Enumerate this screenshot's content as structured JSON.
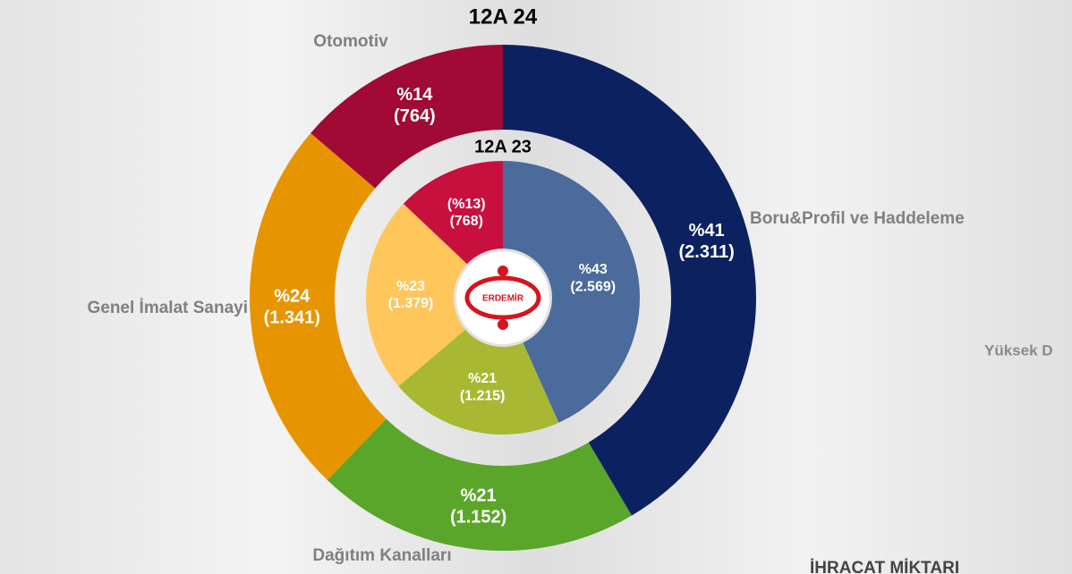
{
  "chart_data": {
    "type": "donut",
    "categories": [
      "Boru&Profil ve Haddeleme",
      "Dağıtım Kanalları",
      "Genel İmalat Sanayi",
      "Otomotiv"
    ],
    "rings": [
      {
        "name": "12A 24",
        "values": [
          2311,
          1152,
          1341,
          764
        ],
        "value_labels": [
          "(2.311)",
          "(1.152)",
          "(1.341)",
          "(764)"
        ],
        "percents": [
          41,
          21,
          24,
          14
        ],
        "percent_labels": [
          "%41",
          "%21",
          "%24",
          "%14"
        ],
        "colors": [
          "#0c2260",
          "#5aa62a",
          "#e69500",
          "#a00a35"
        ]
      },
      {
        "name": "12A 23",
        "values": [
          2569,
          1215,
          1379,
          768
        ],
        "value_labels": [
          "(2.569)",
          "(1.215)",
          "(1.379)",
          "(768)"
        ],
        "percents": [
          43,
          21,
          23,
          13
        ],
        "percent_labels": [
          "%43",
          "%21",
          "%23",
          "(%13)"
        ],
        "colors": [
          "#4a6b9b",
          "#a8b832",
          "#ffc65c",
          "#c8103f"
        ]
      }
    ],
    "logo": "ERDEMİR",
    "annotations": [
      "Yüksek D",
      "İHRACAT MİKTARI"
    ]
  }
}
